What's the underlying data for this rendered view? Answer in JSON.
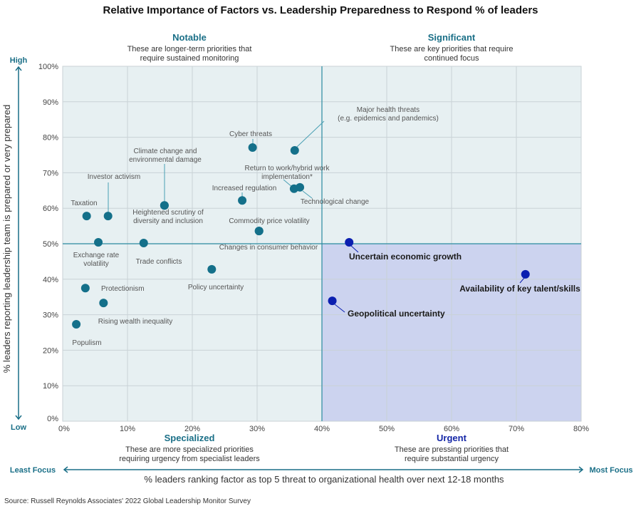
{
  "chart_data": {
    "type": "scatter",
    "title": "Relative Importance of Factors vs. Leadership Preparedness to Respond % of leaders",
    "xlabel": "% leaders ranking factor as top 5 threat to organizational health over next 12-18 months",
    "ylabel": "% leaders reporting leadership team is prepared or very prepared",
    "xlim": [
      0,
      80
    ],
    "ylim": [
      0,
      100
    ],
    "x_ticks": [
      "0%",
      "10%",
      "20%",
      "30%",
      "40%",
      "50%",
      "60%",
      "70%",
      "80%"
    ],
    "y_ticks": [
      "0%",
      "10%",
      "20%",
      "30%",
      "40%",
      "50%",
      "60%",
      "70%",
      "80%",
      "90%",
      "100%"
    ],
    "grid": true,
    "x_axis_ends": {
      "low": "Least Focus",
      "high": "Most Focus"
    },
    "y_axis_ends": {
      "low": "Low",
      "high": "High"
    },
    "thresholds": {
      "x": 40,
      "y": 50
    },
    "quadrants": [
      {
        "title": "Notable",
        "desc": [
          "These are longer-term priorities that",
          "require sustained monitoring"
        ],
        "color": "#1a6f87"
      },
      {
        "title": "Significant",
        "desc": [
          "These are key priorities that require",
          "continued focus"
        ],
        "color": "#1a6f87"
      },
      {
        "title": "Specialized",
        "desc": [
          "These are more specialized priorities",
          "requiring urgency from specialist leaders"
        ],
        "color": "#1a6f87"
      },
      {
        "title": "Urgent",
        "desc": [
          "These are pressing priorities that",
          "require substantial urgency"
        ],
        "color": "#1426a6"
      }
    ],
    "colors": {
      "point": "#14708a",
      "urgent_point": "#0b1fb0",
      "background": "#e7f0f2",
      "urgent_background": "#ccd3ef",
      "divider": "#2a8aa0"
    },
    "points": [
      {
        "label": [
          "Populism"
        ],
        "x": 2.1,
        "y": 27.3
      },
      {
        "label": [
          "Rising wealth inequality"
        ],
        "x": 6.3,
        "y": 33.3
      },
      {
        "label": [
          "Protectionism"
        ],
        "x": 3.5,
        "y": 37.5
      },
      {
        "label": [
          "Exchange rate",
          "volatility"
        ],
        "x": 5.5,
        "y": 50.4
      },
      {
        "label": [
          "Taxation"
        ],
        "x": 3.7,
        "y": 57.8
      },
      {
        "label": [
          "Investor activism"
        ],
        "x": 7.0,
        "y": 57.8
      },
      {
        "label": [
          "Trade conflicts"
        ],
        "x": 12.5,
        "y": 50.2
      },
      {
        "label": [
          "Climate change and",
          "environmental damage"
        ],
        "x": 15.7,
        "y": 60.8
      },
      {
        "label": [
          "Heightened scrutiny of",
          "diversity and inclusion"
        ],
        "x": 15.7,
        "y": 60.8
      },
      {
        "label": [
          "Policy uncertainty"
        ],
        "x": 23.0,
        "y": 42.8
      },
      {
        "label": [
          "Commodity price volatility"
        ],
        "x": 30.3,
        "y": 53.6
      },
      {
        "label": [
          "Changes in consumer behavior"
        ],
        "x": 30.3,
        "y": 53.6
      },
      {
        "label": [
          "Increased regulation"
        ],
        "x": 27.7,
        "y": 62.2
      },
      {
        "label": [
          "Cyber threats"
        ],
        "x": 29.3,
        "y": 77.1
      },
      {
        "label": [
          "Major health threats",
          "(e.g. epidemics and pandemics)"
        ],
        "x": 35.8,
        "y": 76.3
      },
      {
        "label": [
          "Return to work/hybrid work",
          "implementation*"
        ],
        "x": 35.7,
        "y": 65.5
      },
      {
        "label": [
          "Technological change"
        ],
        "x": 36.6,
        "y": 65.9
      },
      {
        "label": [
          "Uncertain economic growth"
        ],
        "x": 44.2,
        "y": 50.4,
        "urgent": true
      },
      {
        "label": [
          "Geopolitical uncertainty"
        ],
        "x": 41.6,
        "y": 33.9,
        "urgent": true
      },
      {
        "label": [
          "Availability of key talent/skills"
        ],
        "x": 71.4,
        "y": 41.4,
        "urgent": true
      }
    ]
  },
  "source": "Source: Russell Reynolds Associates' 2022 Global Leadership Monitor Survey"
}
